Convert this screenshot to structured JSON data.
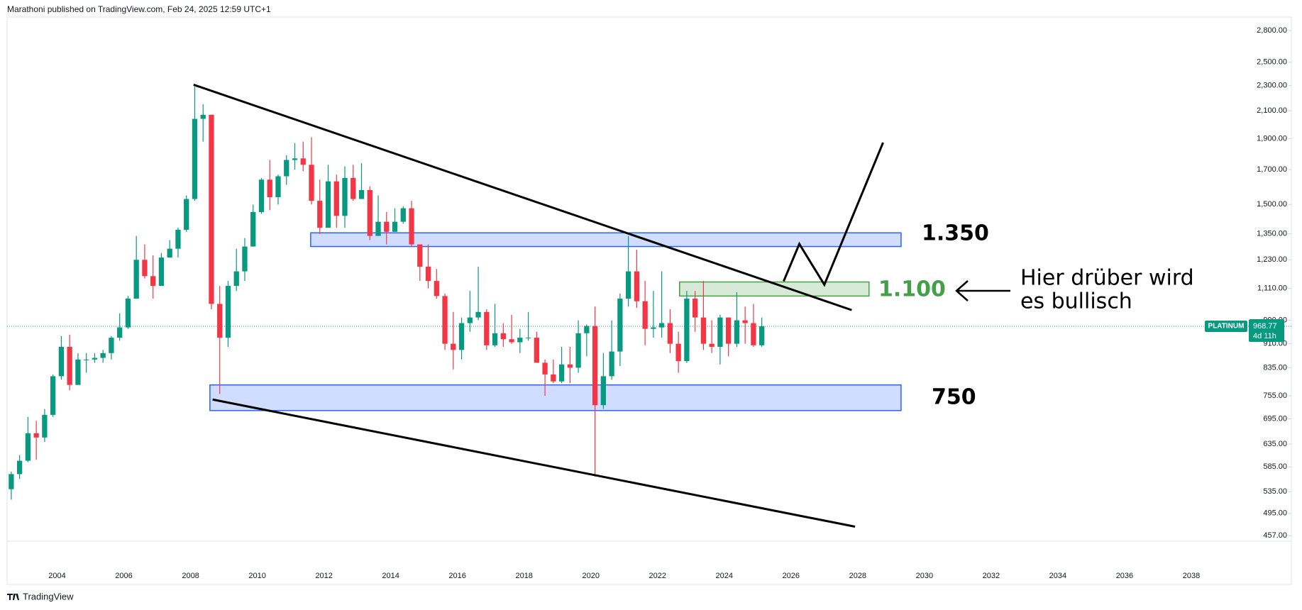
{
  "header": "Marathoni published on TradingView.com, Feb 24, 2025 12:59 UTC+1",
  "footer": "TradingView",
  "chart_data": {
    "type": "candlestick",
    "log_scale": true,
    "up_color": "#089981",
    "down_color": "#f23645",
    "xlim": [
      2002.5,
      2041
    ],
    "xticks": [
      2004,
      2006,
      2008,
      2010,
      2012,
      2014,
      2016,
      2018,
      2020,
      2022,
      2024,
      2026,
      2028,
      2030,
      2032,
      2034,
      2036,
      2038
    ],
    "ylim": [
      448,
      2940
    ],
    "yticks": [
      {
        "value": 457,
        "label": "457.00"
      },
      {
        "value": 495,
        "label": "495.00"
      },
      {
        "value": 535,
        "label": "535.00"
      },
      {
        "value": 585,
        "label": "585.00"
      },
      {
        "value": 635,
        "label": "635.00"
      },
      {
        "value": 695,
        "label": "695.00"
      },
      {
        "value": 755,
        "label": "755.00"
      },
      {
        "value": 835,
        "label": "835.00"
      },
      {
        "value": 910,
        "label": "910.00"
      },
      {
        "value": 990,
        "label": "990.00"
      },
      {
        "value": 1110,
        "label": "1,110.00"
      },
      {
        "value": 1230,
        "label": "1,230.00"
      },
      {
        "value": 1350,
        "label": "1,350.00"
      },
      {
        "value": 1500,
        "label": "1,500.00"
      },
      {
        "value": 1700,
        "label": "1,700.00"
      },
      {
        "value": 1900,
        "label": "1,900.00"
      },
      {
        "value": 2100,
        "label": "2,100.00"
      },
      {
        "value": 2300,
        "label": "2,300.00"
      },
      {
        "value": 2500,
        "label": "2,500.00"
      },
      {
        "value": 2800,
        "label": "2,800.00"
      }
    ],
    "x": [
      2002.625,
      2002.875,
      2003.125,
      2003.375,
      2003.625,
      2003.875,
      2004.125,
      2004.375,
      2004.625,
      2004.875,
      2005.125,
      2005.375,
      2005.625,
      2005.875,
      2006.125,
      2006.375,
      2006.625,
      2006.875,
      2007.125,
      2007.375,
      2007.625,
      2007.875,
      2008.125,
      2008.375,
      2008.625,
      2008.875,
      2009.125,
      2009.375,
      2009.625,
      2009.875,
      2010.125,
      2010.375,
      2010.625,
      2010.875,
      2011.125,
      2011.375,
      2011.625,
      2011.875,
      2012.125,
      2012.375,
      2012.625,
      2012.875,
      2013.125,
      2013.375,
      2013.625,
      2013.875,
      2014.125,
      2014.375,
      2014.625,
      2014.875,
      2015.125,
      2015.375,
      2015.625,
      2015.875,
      2016.125,
      2016.375,
      2016.625,
      2016.875,
      2017.125,
      2017.375,
      2017.625,
      2017.875,
      2018.125,
      2018.375,
      2018.625,
      2018.875,
      2019.125,
      2019.375,
      2019.625,
      2019.875,
      2020.125,
      2020.375,
      2020.625,
      2020.875,
      2021.125,
      2021.375,
      2021.625,
      2021.875,
      2022.125,
      2022.375,
      2022.625,
      2022.875,
      2023.125,
      2023.375,
      2023.625,
      2023.875,
      2024.125,
      2024.375,
      2024.625,
      2024.875,
      2025.125
    ],
    "open": [
      540,
      570,
      598,
      660,
      650,
      705,
      810,
      900,
      785,
      860,
      860,
      865,
      880,
      930,
      965,
      1070,
      1230,
      1160,
      1120,
      1240,
      1280,
      1370,
      1530,
      2040,
      2070,
      1050,
      930,
      1120,
      1180,
      1290,
      1460,
      1640,
      1540,
      1660,
      1760,
      1770,
      1730,
      1520,
      1380,
      1630,
      1440,
      1650,
      1530,
      1580,
      1340,
      1410,
      1360,
      1410,
      1480,
      1300,
      1200,
      1140,
      1080,
      910,
      890,
      980,
      1000,
      1020,
      905,
      945,
      925,
      915,
      930,
      930,
      850,
      815,
      795,
      845,
      835,
      945,
      970,
      730,
      810,
      885,
      1070,
      1180,
      1060,
      960,
      965,
      980,
      910,
      855,
      1070,
      1000,
      910,
      900,
      1000,
      910,
      990,
      980,
      905
    ],
    "high": [
      575,
      610,
      700,
      690,
      720,
      815,
      935,
      940,
      880,
      880,
      880,
      890,
      935,
      1015,
      1080,
      1340,
      1300,
      1250,
      1260,
      1320,
      1380,
      1550,
      2290,
      2150,
      2070,
      1120,
      1140,
      1280,
      1330,
      1500,
      1650,
      1760,
      1670,
      1790,
      1870,
      1880,
      1910,
      1640,
      1730,
      1670,
      1720,
      1730,
      1740,
      1600,
      1550,
      1460,
      1480,
      1490,
      1520,
      1300,
      1300,
      1190,
      1090,
      1020,
      1000,
      1100,
      1200,
      1030,
      1050,
      980,
      1010,
      960,
      1020,
      950,
      860,
      860,
      900,
      900,
      990,
      975,
      1040,
      880,
      990,
      1090,
      1340,
      1275,
      1140,
      1100,
      1180,
      1030,
      950,
      1100,
      1100,
      1140,
      990,
      1010,
      1000,
      1095,
      1040,
      1050,
      1000
    ],
    "low": [
      520,
      560,
      595,
      600,
      640,
      700,
      800,
      770,
      785,
      820,
      850,
      850,
      860,
      920,
      960,
      1070,
      1150,
      1070,
      1120,
      1240,
      1240,
      1360,
      1520,
      1880,
      1030,
      760,
      900,
      1100,
      1140,
      1290,
      1450,
      1470,
      1500,
      1610,
      1700,
      1690,
      1500,
      1350,
      1380,
      1380,
      1380,
      1520,
      1530,
      1320,
      1340,
      1300,
      1360,
      1400,
      1290,
      1140,
      1110,
      1070,
      890,
      830,
      860,
      950,
      990,
      890,
      900,
      900,
      910,
      880,
      920,
      850,
      755,
      790,
      790,
      790,
      820,
      870,
      565,
      720,
      800,
      840,
      1040,
      1035,
      905,
      930,
      930,
      880,
      820,
      850,
      950,
      890,
      880,
      845,
      870,
      900,
      910,
      900,
      900
    ],
    "close": [
      570,
      598,
      660,
      650,
      705,
      810,
      900,
      785,
      860,
      860,
      865,
      880,
      930,
      965,
      1070,
      1230,
      1160,
      1120,
      1240,
      1280,
      1370,
      1530,
      2040,
      2070,
      1050,
      930,
      1120,
      1180,
      1290,
      1460,
      1640,
      1540,
      1660,
      1760,
      1770,
      1730,
      1520,
      1380,
      1630,
      1440,
      1650,
      1530,
      1580,
      1340,
      1410,
      1360,
      1410,
      1480,
      1300,
      1200,
      1140,
      1080,
      910,
      890,
      980,
      1000,
      1020,
      905,
      945,
      925,
      915,
      930,
      930,
      850,
      815,
      795,
      845,
      835,
      945,
      970,
      730,
      810,
      885,
      1070,
      1180,
      1060,
      960,
      965,
      980,
      910,
      855,
      1070,
      1000,
      910,
      900,
      1000,
      910,
      990,
      980,
      905,
      968.77
    ],
    "price_label": {
      "name": "PLATINUM",
      "value": 968.77,
      "countdown": "4d 11h",
      "color": "#089981"
    },
    "zones": [
      {
        "color": "#2962ff",
        "x": [
          2011.6,
          2029.3
        ],
        "y": [
          1290,
          1355
        ]
      },
      {
        "color": "#2962ff",
        "x": [
          2008.58,
          2029.3
        ],
        "y": [
          716,
          785
        ]
      },
      {
        "color": "#43a047",
        "x": [
          2022.66,
          2028.34
        ],
        "y": [
          1080,
          1136
        ]
      }
    ],
    "lines": [
      {
        "x": [
          2008.09,
          2027.82
        ],
        "y": [
          2306,
          1027
        ]
      },
      {
        "x": [
          2008.66,
          2027.92
        ],
        "y": [
          745,
          472
        ]
      },
      {
        "x": [
          2025.78,
          2026.25,
          2027.0,
          2028.76
        ],
        "y": [
          1139,
          1302,
          1125,
          1873
        ]
      }
    ],
    "annotations": [
      "1.350",
      "1.100",
      "750",
      "Hier drüber wird",
      "es bullisch"
    ]
  }
}
